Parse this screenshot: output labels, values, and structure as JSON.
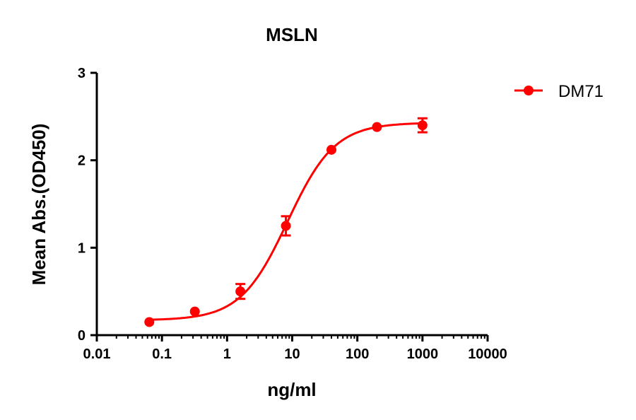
{
  "chart_data": {
    "type": "scatter",
    "title": "MSLN",
    "xlabel": "ng/ml",
    "ylabel": "Mean Abs.(OD450)",
    "xscale": "log",
    "xlim": [
      0.01,
      10000
    ],
    "ylim": [
      0,
      3
    ],
    "xticks": [
      "0.01",
      "0.1",
      "1",
      "10",
      "100",
      "1000",
      "10000"
    ],
    "yticks": [
      "0",
      "1",
      "2",
      "3"
    ],
    "grid": false,
    "legend_position": "top-right",
    "series": [
      {
        "name": "DM71",
        "color": "#ff0000",
        "x": [
          0.064,
          0.32,
          1.6,
          8,
          40,
          200,
          1000
        ],
        "y": [
          0.15,
          0.27,
          0.5,
          1.25,
          2.12,
          2.38,
          2.4
        ],
        "error": [
          0.02,
          0.02,
          0.085,
          0.11,
          0.02,
          0.02,
          0.08
        ],
        "fit": {
          "model": "4PL",
          "bottom": 0.17,
          "top": 2.43,
          "ec50": 8.5,
          "hill": 1.2
        }
      }
    ]
  }
}
